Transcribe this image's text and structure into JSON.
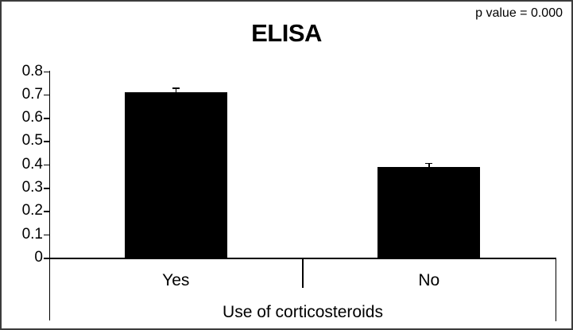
{
  "chart_data": {
    "type": "bar",
    "title": "ELISA",
    "annotation": "p value = 0.000",
    "categories": [
      "Yes",
      "No"
    ],
    "values": [
      0.71,
      0.39
    ],
    "errors": [
      0.02,
      0.016
    ],
    "xlabel": "Use of corticosteroids",
    "ylabel": "",
    "ylim": [
      0,
      0.8
    ],
    "ytick_step": 0.1,
    "bar_color": "#000000",
    "grid": false,
    "legend": "none"
  }
}
